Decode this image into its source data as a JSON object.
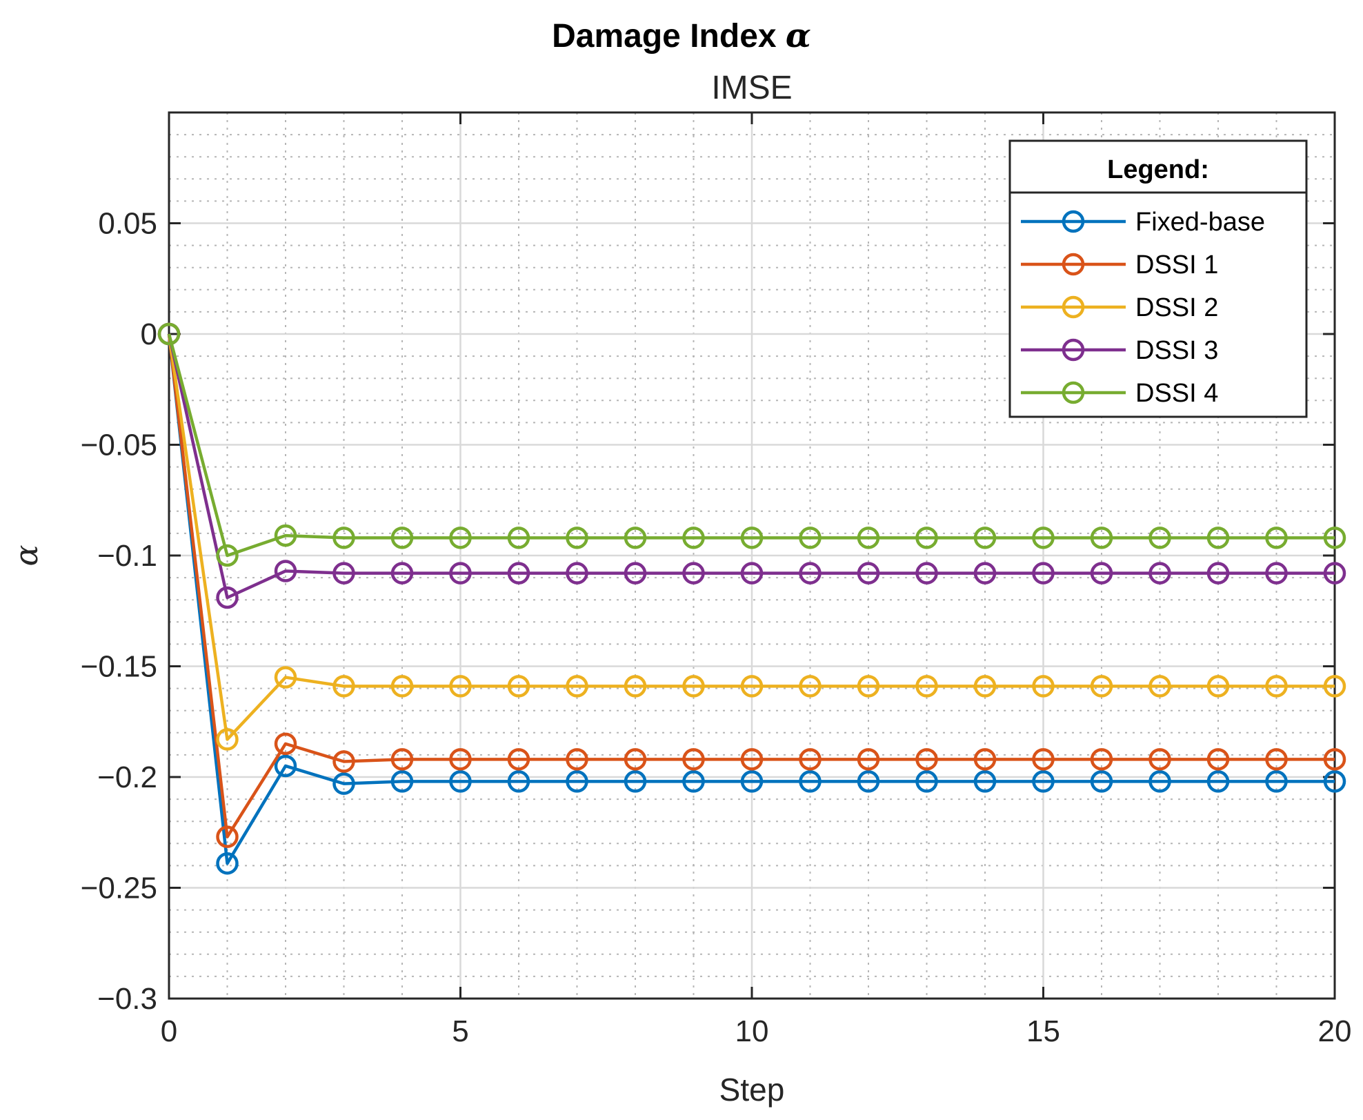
{
  "chart_data": {
    "type": "line",
    "title": "Damage Index",
    "title_symbol": "α",
    "subtitle": "IMSE",
    "xlabel": "Step",
    "ylabel": "α",
    "xlim": [
      0,
      20
    ],
    "ylim": [
      -0.3,
      0.1
    ],
    "xticks": [
      0,
      5,
      10,
      15,
      20
    ],
    "xtick_labels": [
      "0",
      "5",
      "10",
      "15",
      "20"
    ],
    "yticks": [
      0.05,
      0,
      -0.05,
      -0.1,
      -0.15,
      -0.2,
      -0.25,
      -0.3
    ],
    "ytick_labels": [
      "0.05",
      "0",
      "−0.05",
      "−0.1",
      "−0.15",
      "−0.2",
      "−0.25",
      "−0.3"
    ],
    "grid": "on (major and minor)",
    "marker": "circle",
    "legend_title": "Legend:",
    "legend_position": "top-right",
    "x": [
      0,
      1,
      2,
      3,
      4,
      5,
      6,
      7,
      8,
      9,
      10,
      11,
      12,
      13,
      14,
      15,
      16,
      17,
      18,
      19,
      20
    ],
    "series": [
      {
        "name": "Fixed-base",
        "color": "#0072BD",
        "values": [
          0,
          -0.239,
          -0.195,
          -0.203,
          -0.202,
          -0.202,
          -0.202,
          -0.202,
          -0.202,
          -0.202,
          -0.202,
          -0.202,
          -0.202,
          -0.202,
          -0.202,
          -0.202,
          -0.202,
          -0.202,
          -0.202,
          -0.202,
          -0.202
        ]
      },
      {
        "name": "DSSI 1",
        "color": "#D95319",
        "values": [
          0,
          -0.227,
          -0.185,
          -0.193,
          -0.192,
          -0.192,
          -0.192,
          -0.192,
          -0.192,
          -0.192,
          -0.192,
          -0.192,
          -0.192,
          -0.192,
          -0.192,
          -0.192,
          -0.192,
          -0.192,
          -0.192,
          -0.192,
          -0.192
        ]
      },
      {
        "name": "DSSI 2",
        "color": "#EDB120",
        "values": [
          0,
          -0.183,
          -0.155,
          -0.159,
          -0.159,
          -0.159,
          -0.159,
          -0.159,
          -0.159,
          -0.159,
          -0.159,
          -0.159,
          -0.159,
          -0.159,
          -0.159,
          -0.159,
          -0.159,
          -0.159,
          -0.159,
          -0.159,
          -0.159
        ]
      },
      {
        "name": "DSSI 3",
        "color": "#7E2F8E",
        "values": [
          0,
          -0.119,
          -0.107,
          -0.108,
          -0.108,
          -0.108,
          -0.108,
          -0.108,
          -0.108,
          -0.108,
          -0.108,
          -0.108,
          -0.108,
          -0.108,
          -0.108,
          -0.108,
          -0.108,
          -0.108,
          -0.108,
          -0.108,
          -0.108
        ]
      },
      {
        "name": "DSSI 4",
        "color": "#77AC30",
        "values": [
          0,
          -0.1,
          -0.091,
          -0.092,
          -0.092,
          -0.092,
          -0.092,
          -0.092,
          -0.092,
          -0.092,
          -0.092,
          -0.092,
          -0.092,
          -0.092,
          -0.092,
          -0.092,
          -0.092,
          -0.092,
          -0.092,
          -0.092,
          -0.092
        ]
      }
    ]
  }
}
